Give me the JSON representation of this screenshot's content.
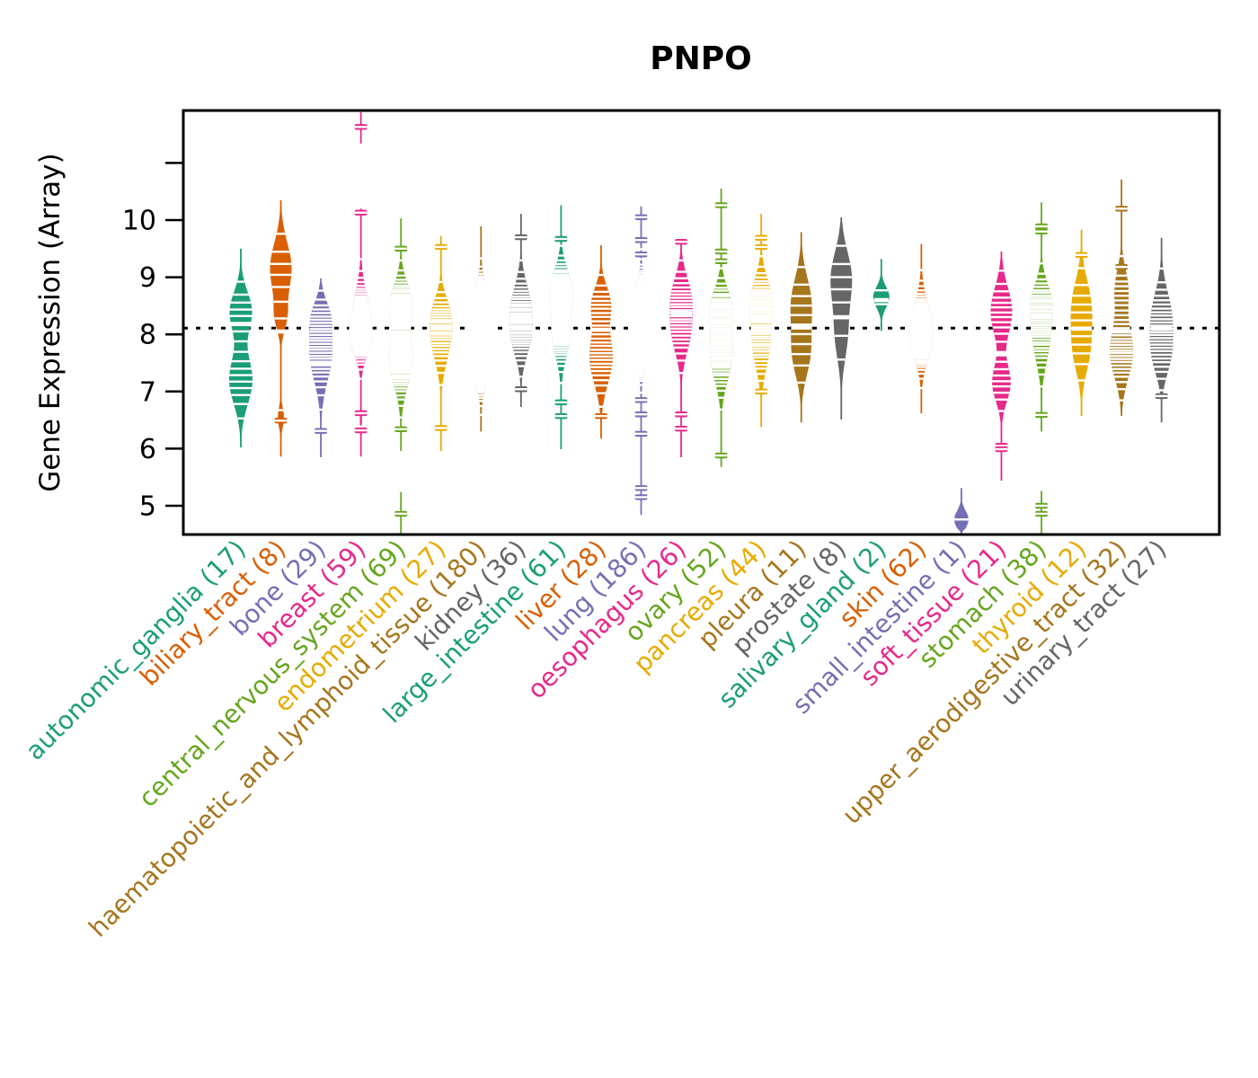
{
  "chart_data": {
    "type": "violin",
    "title": "PNPO",
    "xlabel": "",
    "ylabel": "Gene Expression (Array)",
    "ylim": [
      4.5,
      11.92
    ],
    "yticks": [
      5,
      6,
      7,
      8,
      9,
      10
    ],
    "extra_unlabeled_yticks": [
      11
    ],
    "grid": "off",
    "overall_mean_line": 8.11,
    "overall_line_style": "dotted-black",
    "point_mark_color": "#ffffff",
    "palette_dark2": [
      "#1B9E77",
      "#D95F02",
      "#7570B3",
      "#E7298A",
      "#66A61E",
      "#E6AB02",
      "#A6761D",
      "#666666"
    ],
    "categories": [
      {
        "label": "autonomic_ganglia",
        "n": 17,
        "color": "#1B9E77",
        "median": 8.18,
        "min": 6.02,
        "max": 9.5,
        "bumps": [
          [
            8.4,
            0.35,
            0.95
          ],
          [
            7.2,
            0.42,
            1.0
          ]
        ],
        "width": 13,
        "marks": [],
        "segments": []
      },
      {
        "label": "biliary_tract",
        "n": 8,
        "color": "#D95F02",
        "median": 8.05,
        "min": 5.86,
        "max": 10.35,
        "bumps": [
          [
            9.15,
            0.45,
            1.0
          ],
          [
            8.3,
            0.25,
            0.45
          ],
          [
            6.55,
            0.18,
            0.28
          ]
        ],
        "width": 12,
        "marks": [
          6.49
        ],
        "segments": []
      },
      {
        "label": "bone",
        "n": 29,
        "color": "#7570B3",
        "median": 7.48,
        "min": 5.85,
        "max": 8.98,
        "bumps": [
          [
            7.7,
            0.5,
            1.0
          ],
          [
            8.35,
            0.25,
            0.45
          ]
        ],
        "width": 13,
        "marks": [
          6.31
        ],
        "segments": []
      },
      {
        "label": "breast",
        "n": 59,
        "color": "#E7298A",
        "median": 8.16,
        "min": 5.86,
        "max": 10.2,
        "bumps": [
          [
            8.3,
            0.45,
            1.0
          ],
          [
            7.9,
            0.3,
            0.6
          ],
          [
            6.5,
            0.18,
            0.12
          ]
        ],
        "width": 13,
        "marks": [
          10.13,
          6.62,
          6.32
        ],
        "segments": [
          {
            "lo": 11.34,
            "hi": 11.89,
            "marks": [
              11.63
            ]
          }
        ]
      },
      {
        "label": "central_nervous_system",
        "n": 69,
        "color": "#66A61E",
        "median": 8.03,
        "min": 5.96,
        "max": 10.03,
        "bumps": [
          [
            8.55,
            0.35,
            0.9
          ],
          [
            7.55,
            0.45,
            1.0
          ]
        ],
        "width": 13,
        "marks": [
          9.5,
          6.34
        ],
        "segments": [
          {
            "lo": 4.5,
            "hi": 5.24,
            "marks": [
              4.86
            ]
          }
        ]
      },
      {
        "label": "endometrium",
        "n": 27,
        "color": "#E6AB02",
        "median": 8.1,
        "min": 5.96,
        "max": 9.72,
        "bumps": [
          [
            8.35,
            0.32,
            0.9
          ],
          [
            7.85,
            0.4,
            1.0
          ]
        ],
        "width": 13,
        "marks": [
          9.53,
          6.36
        ],
        "segments": []
      },
      {
        "label": "haematopoietic_and_lymphoid_tissue",
        "n": 180,
        "color": "#A6761D",
        "median": 8.1,
        "min": 6.3,
        "max": 9.89,
        "bumps": [
          [
            8.45,
            0.35,
            1.0
          ],
          [
            7.6,
            0.4,
            0.95
          ]
        ],
        "width": 14,
        "marks": [],
        "segments": []
      },
      {
        "label": "kidney",
        "n": 36,
        "color": "#666666",
        "median": 8.3,
        "min": 6.73,
        "max": 10.11,
        "bumps": [
          [
            8.5,
            0.4,
            1.0
          ],
          [
            7.9,
            0.35,
            0.8
          ]
        ],
        "width": 13,
        "marks": [
          9.7,
          7.04
        ],
        "segments": []
      },
      {
        "label": "large_intestine",
        "n": 61,
        "color": "#1B9E77",
        "median": 8.5,
        "min": 5.99,
        "max": 10.26,
        "bumps": [
          [
            8.8,
            0.35,
            1.0
          ],
          [
            8.0,
            0.4,
            0.85
          ]
        ],
        "width": 13,
        "marks": [
          9.67,
          6.81,
          6.57
        ],
        "segments": []
      },
      {
        "label": "liver",
        "n": 28,
        "color": "#D95F02",
        "median": 8.08,
        "min": 6.18,
        "max": 9.56,
        "bumps": [
          [
            8.55,
            0.3,
            0.75
          ],
          [
            7.6,
            0.45,
            1.0
          ]
        ],
        "width": 13,
        "marks": [
          6.57
        ],
        "segments": []
      },
      {
        "label": "lung",
        "n": 186,
        "color": "#7570B3",
        "median": 8.1,
        "min": 4.84,
        "max": 10.24,
        "bumps": [
          [
            8.3,
            0.45,
            1.0
          ],
          [
            7.75,
            0.3,
            0.7
          ]
        ],
        "width": 14,
        "marks": [
          10.05,
          9.65,
          9.4,
          6.85,
          6.6,
          6.26,
          5.31,
          5.15
        ],
        "segments": []
      },
      {
        "label": "oesophagus",
        "n": 26,
        "color": "#E7298A",
        "median": 8.37,
        "min": 5.85,
        "max": 9.64,
        "bumps": [
          [
            8.7,
            0.35,
            0.9
          ],
          [
            8.05,
            0.4,
            1.0
          ]
        ],
        "width": 13,
        "marks": [
          9.62,
          6.6,
          6.35
        ],
        "segments": []
      },
      {
        "label": "ovary",
        "n": 52,
        "color": "#66A61E",
        "median": 8.06,
        "min": 5.68,
        "max": 10.55,
        "bumps": [
          [
            8.5,
            0.33,
            0.85
          ],
          [
            7.65,
            0.45,
            1.0
          ]
        ],
        "width": 13,
        "marks": [
          10.26,
          9.45,
          9.28,
          5.88
        ],
        "segments": []
      },
      {
        "label": "pancreas",
        "n": 44,
        "color": "#E6AB02",
        "median": 8.3,
        "min": 6.38,
        "max": 10.11,
        "bumps": [
          [
            8.6,
            0.38,
            1.0
          ],
          [
            7.8,
            0.42,
            0.8
          ]
        ],
        "width": 13,
        "marks": [
          9.69,
          9.53,
          7.0
        ],
        "segments": []
      },
      {
        "label": "pleura",
        "n": 11,
        "color": "#A6761D",
        "median": 8.12,
        "min": 6.46,
        "max": 9.79,
        "bumps": [
          [
            8.55,
            0.45,
            0.9
          ],
          [
            7.65,
            0.4,
            0.75
          ]
        ],
        "width": 12,
        "marks": [],
        "segments": []
      },
      {
        "label": "prostate",
        "n": 8,
        "color": "#666666",
        "median": 8.3,
        "min": 6.51,
        "max": 10.05,
        "bumps": [
          [
            9.0,
            0.45,
            1.0
          ],
          [
            8.0,
            0.45,
            0.6
          ]
        ],
        "width": 12,
        "marks": [],
        "segments": []
      },
      {
        "label": "salivary_gland",
        "n": 2,
        "color": "#1B9E77",
        "median": 8.6,
        "min": 8.06,
        "max": 9.32,
        "bumps": [
          [
            8.65,
            0.18,
            1.0
          ]
        ],
        "width": 9,
        "marks": [],
        "segments": []
      },
      {
        "label": "skin",
        "n": 62,
        "color": "#D95F02",
        "median": 8.05,
        "min": 6.62,
        "max": 9.58,
        "bumps": [
          [
            8.25,
            0.4,
            1.0
          ],
          [
            7.8,
            0.35,
            0.85
          ]
        ],
        "width": 13,
        "marks": [],
        "segments": []
      },
      {
        "label": "small_intestine",
        "n": 1,
        "color": "#7570B3",
        "median": 4.76,
        "min": 4.5,
        "max": 5.31,
        "bumps": [
          [
            4.76,
            0.15,
            1.0
          ]
        ],
        "width": 8,
        "marks": [
          4.76
        ],
        "segments": []
      },
      {
        "label": "soft_tissue",
        "n": 21,
        "color": "#E7298A",
        "median": 7.65,
        "min": 5.44,
        "max": 9.45,
        "bumps": [
          [
            8.4,
            0.42,
            1.0
          ],
          [
            7.15,
            0.32,
            0.85
          ]
        ],
        "width": 12,
        "marks": [
          6.05,
          5.99
        ],
        "segments": []
      },
      {
        "label": "stomach",
        "n": 38,
        "color": "#66A61E",
        "median": 8.3,
        "min": 6.3,
        "max": 10.31,
        "bumps": [
          [
            8.55,
            0.35,
            1.0
          ],
          [
            7.85,
            0.4,
            0.75
          ]
        ],
        "width": 13,
        "marks": [
          9.89,
          9.8,
          6.59
        ],
        "segments": [
          {
            "lo": 4.5,
            "hi": 5.26,
            "marks": [
              5.0,
              4.86
            ]
          }
        ]
      },
      {
        "label": "thyroid",
        "n": 12,
        "color": "#E6AB02",
        "median": 8.1,
        "min": 6.57,
        "max": 9.83,
        "bumps": [
          [
            8.5,
            0.45,
            0.9
          ],
          [
            7.7,
            0.4,
            0.7
          ]
        ],
        "width": 12,
        "marks": [
          9.39
        ],
        "segments": []
      },
      {
        "label": "upper_aerodigestive_tract",
        "n": 32,
        "color": "#A6761D",
        "median": 8.05,
        "min": 6.57,
        "max": 10.71,
        "bumps": [
          [
            8.8,
            0.35,
            0.55
          ],
          [
            7.7,
            0.45,
            1.0
          ]
        ],
        "width": 13,
        "marks": [
          10.2,
          9.18
        ],
        "segments": []
      },
      {
        "label": "urinary_tract",
        "n": 27,
        "color": "#666666",
        "median": 8.1,
        "min": 6.46,
        "max": 9.69,
        "bumps": [
          [
            8.3,
            0.45,
            1.0
          ],
          [
            7.6,
            0.35,
            0.7
          ]
        ],
        "width": 13,
        "marks": [
          6.92
        ],
        "segments": []
      }
    ]
  }
}
